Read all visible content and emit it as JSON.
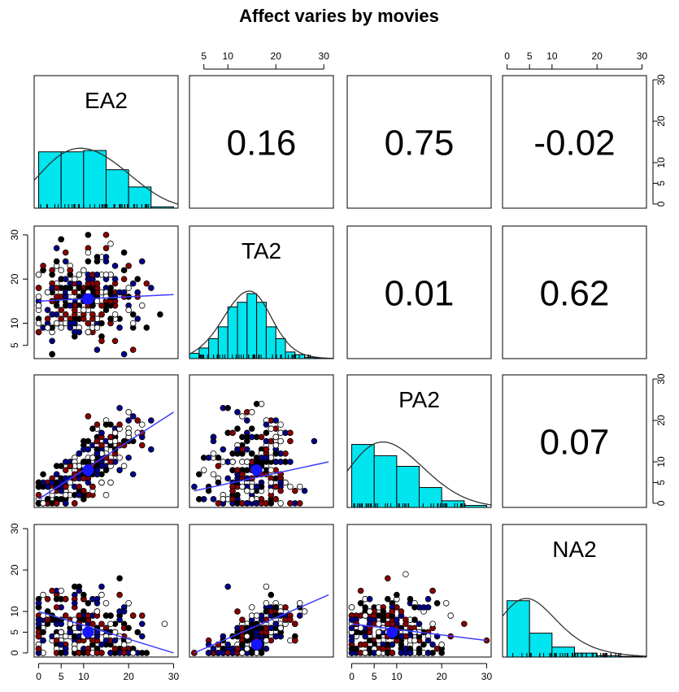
{
  "chart_data": {
    "type": "scatter",
    "title": "Affect varies by movies",
    "variables": [
      "EA2",
      "TA2",
      "PA2",
      "NA2"
    ],
    "correlations": [
      {
        "row": "EA2",
        "col": "TA2",
        "label": "0.16"
      },
      {
        "row": "EA2",
        "col": "PA2",
        "label": "0.75"
      },
      {
        "row": "EA2",
        "col": "NA2",
        "label": "-0.02"
      },
      {
        "row": "TA2",
        "col": "PA2",
        "label": "0.01"
      },
      {
        "row": "TA2",
        "col": "NA2",
        "label": "0.62"
      },
      {
        "row": "PA2",
        "col": "NA2",
        "label": "0.07"
      }
    ],
    "axis_ticks": {
      "EA2": [
        "0",
        "5",
        "10",
        "20",
        "30"
      ],
      "TA2": [
        "5",
        "10",
        "20",
        "30"
      ],
      "PA2": [
        "0",
        "5",
        "10",
        "20",
        "30"
      ],
      "NA2": [
        "0",
        "5",
        "10",
        "20",
        "30"
      ]
    },
    "ranges": {
      "EA2": [
        -1,
        31
      ],
      "TA2": [
        2,
        32
      ],
      "PA2": [
        -1,
        31
      ],
      "NA2": [
        -1,
        31
      ]
    },
    "histograms": {
      "EA2": {
        "bins": [
          0,
          5,
          10,
          15,
          20,
          25,
          30
        ],
        "heights": [
          0.85,
          0.85,
          0.87,
          0.58,
          0.32,
          0.02
        ]
      },
      "TA2": {
        "bins": [
          2,
          4,
          6,
          8,
          10,
          12,
          14,
          16,
          18,
          20,
          22,
          24,
          26,
          28,
          30
        ],
        "heights": [
          0.08,
          0.16,
          0.3,
          0.48,
          0.78,
          0.85,
          0.98,
          0.85,
          0.48,
          0.3,
          0.1,
          0.06,
          0.02,
          0.01
        ]
      },
      "PA2": {
        "bins": [
          0,
          5,
          10,
          15,
          20,
          25,
          30
        ],
        "heights": [
          0.95,
          0.78,
          0.62,
          0.3,
          0.1,
          0.03
        ]
      },
      "NA2": {
        "bins": [
          0,
          5,
          10,
          15,
          20,
          25,
          30
        ],
        "heights": [
          0.85,
          0.36,
          0.15,
          0.06,
          0.02,
          0.01
        ]
      }
    },
    "group_colors": [
      "#ffffff",
      "#000000",
      "#8b0000",
      "#00008b"
    ],
    "fit_line_color": "#3d3dff",
    "hist_color": "#00e5ee",
    "centroid_color": "#1515ff",
    "scatter_pairs": [
      {
        "x": "EA2",
        "y": "TA2",
        "fit": [
          [
            0,
            15
          ],
          [
            30,
            16.5
          ]
        ],
        "centroid": [
          11,
          15.5
        ],
        "mx": 10,
        "sx": 6,
        "b": 0.05,
        "my": 15.5,
        "sy": 5
      },
      {
        "x": "EA2",
        "y": "PA2",
        "fit": [
          [
            0,
            1
          ],
          [
            30,
            22
          ]
        ],
        "centroid": [
          11,
          8
        ],
        "mx": 10,
        "sx": 6.5,
        "b": 0.75,
        "my": 8,
        "sy": 4
      },
      {
        "x": "EA2",
        "y": "NA2",
        "fit": [
          [
            0,
            10
          ],
          [
            30,
            0
          ]
        ],
        "centroid": [
          11,
          5
        ],
        "mx": 10,
        "sx": 6.5,
        "b": -0.05,
        "my": 5,
        "sy": 5
      },
      {
        "x": "TA2",
        "y": "PA2",
        "fit": [
          [
            3,
            3
          ],
          [
            31,
            10
          ]
        ],
        "centroid": [
          16,
          8
        ],
        "mx": 15.5,
        "sx": 4.5,
        "b": 0.02,
        "my": 8,
        "sy": 6
      },
      {
        "x": "TA2",
        "y": "NA2",
        "fit": [
          [
            3,
            0
          ],
          [
            31,
            14
          ]
        ],
        "centroid": [
          16,
          2
        ],
        "mx": 15.5,
        "sx": 4.5,
        "b": 0.6,
        "my": 4,
        "sy": 3
      },
      {
        "x": "PA2",
        "y": "NA2",
        "fit": [
          [
            0,
            7
          ],
          [
            30,
            3
          ]
        ],
        "centroid": [
          9,
          5
        ],
        "mx": 8,
        "sx": 6,
        "b": 0.05,
        "my": 5,
        "sy": 5
      }
    ]
  }
}
